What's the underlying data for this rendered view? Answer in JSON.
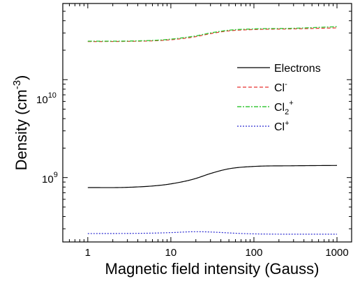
{
  "chart_data": {
    "type": "line",
    "x_scale": "log",
    "y_scale": "log",
    "xlim": [
      0.5,
      1500
    ],
    "ylim": [
      220000000,
      60000000000
    ],
    "x_ticks": [
      1,
      10,
      100,
      1000
    ],
    "x_tick_labels": [
      "1",
      "10",
      "100",
      "1000"
    ],
    "y_ticks": [
      1000000000,
      10000000000
    ],
    "xlabel": "Magnetic field intensity (Gauss)",
    "ylabel": "Density (cm-3)",
    "legend_position": "right",
    "series": [
      {
        "name": "Electrons",
        "color": "#000000",
        "dash": "solid",
        "points": [
          [
            1,
            790000000
          ],
          [
            3,
            795000000
          ],
          [
            8,
            840000000
          ],
          [
            15,
            920000000
          ],
          [
            20,
            980000000
          ],
          [
            30,
            1100000000
          ],
          [
            50,
            1230000000
          ],
          [
            100,
            1300000000
          ],
          [
            300,
            1320000000
          ],
          [
            1000,
            1330000000
          ]
        ]
      },
      {
        "name": "Cl-",
        "color": "#e8322d",
        "dash": "dashed",
        "points": [
          [
            1,
            24500000000
          ],
          [
            3,
            24600000000
          ],
          [
            8,
            25200000000
          ],
          [
            15,
            26500000000
          ],
          [
            20,
            27500000000
          ],
          [
            30,
            29500000000
          ],
          [
            50,
            31500000000
          ],
          [
            100,
            32500000000
          ],
          [
            300,
            33000000000
          ],
          [
            1000,
            33800000000
          ]
        ]
      },
      {
        "name": "Cl2+",
        "color": "#38c83a",
        "dash": "dashdot",
        "points": [
          [
            1,
            24700000000
          ],
          [
            3,
            24800000000
          ],
          [
            8,
            25500000000
          ],
          [
            15,
            27000000000
          ],
          [
            20,
            28000000000
          ],
          [
            30,
            30000000000
          ],
          [
            50,
            32000000000
          ],
          [
            100,
            33000000000
          ],
          [
            300,
            33500000000
          ],
          [
            1000,
            34800000000
          ]
        ]
      },
      {
        "name": "Cl+",
        "color": "#2b2bd1",
        "dash": "dotted",
        "points": [
          [
            1,
            268000000
          ],
          [
            5,
            270000000
          ],
          [
            10,
            274000000
          ],
          [
            20,
            280000000
          ],
          [
            30,
            278000000
          ],
          [
            60,
            270000000
          ],
          [
            100,
            266000000
          ],
          [
            1000,
            264000000
          ]
        ]
      }
    ]
  },
  "labels": {
    "x_axis_title": "Magnetic field intensity (Gauss)",
    "y_axis_title_main": "Density (cm",
    "y_axis_title_sup": "-3",
    "y_axis_title_end": ")",
    "y_tick_1e9_base": "10",
    "y_tick_1e9_exp": "9",
    "y_tick_1e10_base": "10",
    "y_tick_1e10_exp": "10",
    "legend_electrons": "Electrons",
    "legend_clminus_base": "Cl",
    "legend_clminus_sup": "-",
    "legend_cl2plus_base": "Cl",
    "legend_cl2plus_sub": "2",
    "legend_cl2plus_sup": "+",
    "legend_clplus_base": "Cl",
    "legend_clplus_sup": "+"
  }
}
